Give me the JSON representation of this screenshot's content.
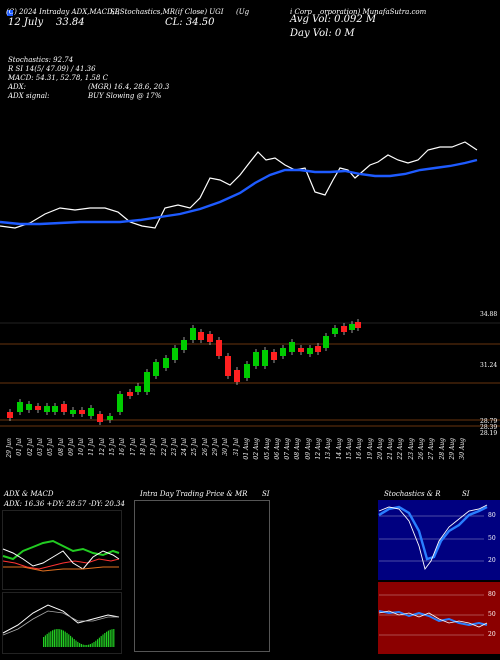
{
  "header": {
    "line1": "(C) 2024 Intraday ADX,MACD,B",
    "line1b": "SI,Stochastics,MR",
    "line1c": "(if Close) UGI",
    "line1d": "(Ug",
    "line1e": "i Corp",
    "line1f": "orporation) MunafaSutra.com",
    "date_label": "12 July",
    "date_value": "33.84",
    "close_label": "CL: 34.50",
    "avg_vol": "Avg Vol: 0.092  M",
    "day_vol": "Day Vol: 0  M"
  },
  "indicators": {
    "stochastics": "Stochastics: 92.74",
    "rsi": "R                SI 14(5/ 47.09) / 41.36",
    "macd": "MACD: 54.31,  52.78, 1.58  C",
    "adx": "ADX:",
    "mgr": "(MGR) 16.4, 28.6, 20.3",
    "adx_signal": "ADX  signal:",
    "buy": "BUY Slowing @ 17%"
  },
  "price_levels": [
    "34.88",
    "31.24",
    "28.79",
    "28.39",
    "28.19"
  ],
  "dates": [
    "29 Jun",
    "01 Jul",
    "02 Jul",
    "03 Jul",
    "05 Jul",
    "08 Jul",
    "09 Jul",
    "10 Jul",
    "11 Jul",
    "12 Jul",
    "15 Jul",
    "16 Jul",
    "17 Jul",
    "18 Jul",
    "19 Jul",
    "22 Jul",
    "23 Jul",
    "24 Jul",
    "25 Jul",
    "26 Jul",
    "29 Jul",
    "30 Jul",
    "31 Jul",
    "01 Aug",
    "02 Aug",
    "05 Aug",
    "06 Aug",
    "07 Aug",
    "08 Aug",
    "09 Aug",
    "12 Aug",
    "13 Aug",
    "14 Aug",
    "15 Aug",
    "16 Aug",
    "19 Aug",
    "20 Aug",
    "21 Aug",
    "22 Aug",
    "23 Aug",
    "26 Aug",
    "27 Aug",
    "28 Aug",
    "29 Aug",
    "30 Aug"
  ],
  "panels": {
    "adx_title": "ADX  & MACD",
    "adx_values": "ADX: 16.36  +DY: 28.57 -DY: 20.34",
    "intraday_title": "Intra  Day Trading Price  & MR",
    "intraday_si": "SI",
    "stoch_title": "Stochastics & R",
    "stoch_si": "SI",
    "stoch_levels": [
      "80",
      "50",
      "20"
    ],
    "rsi_levels": [
      "80",
      "50",
      "20"
    ]
  },
  "colors": {
    "ma_line": "#1e5bff",
    "up_candle": "#00cc00",
    "down_candle": "#ff2020",
    "rsi_bg": "#8b0000",
    "stoch_bg": "#000080"
  }
}
